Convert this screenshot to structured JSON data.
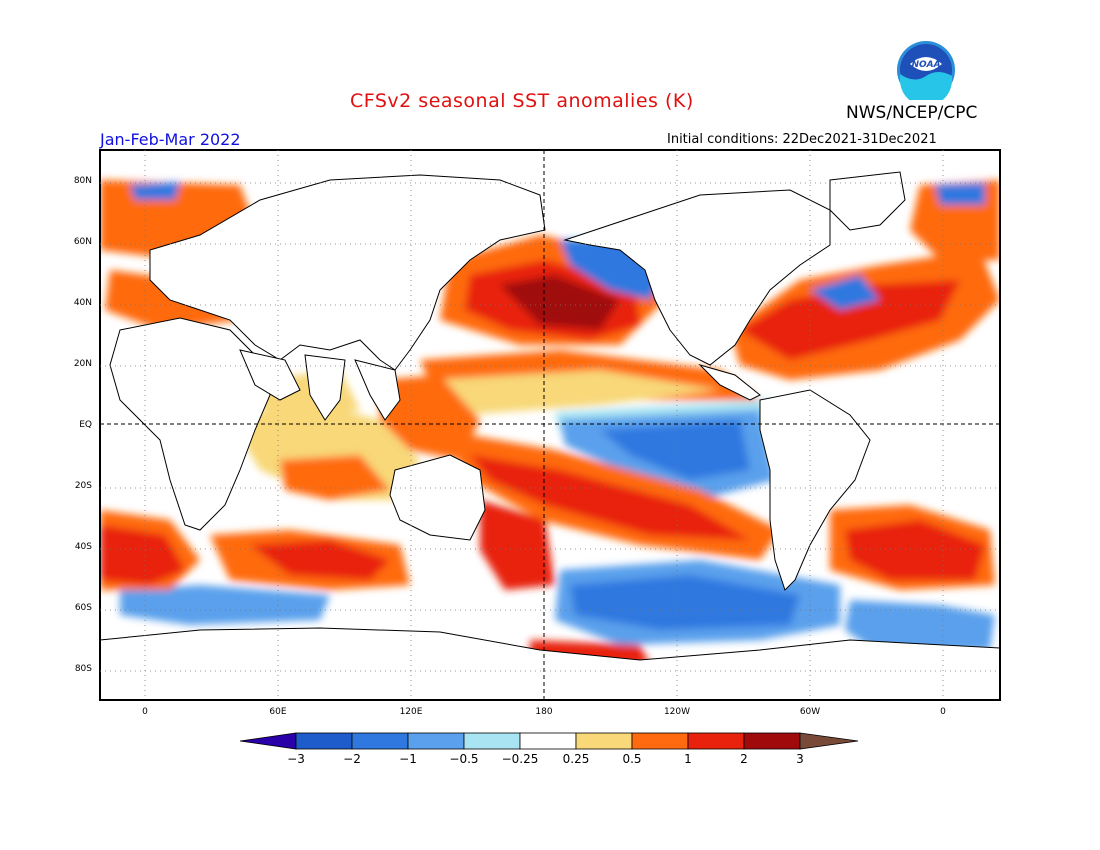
{
  "header": {
    "title": "CFSv2 seasonal SST anomalies (K)",
    "organization": "NWS/NCEP/CPC",
    "period": "Jan-Feb-Mar 2022",
    "initial_conditions": "Initial conditions: 22Dec2021-31Dec2021",
    "logo_text": "NOAA"
  },
  "axes": {
    "lat_labels": [
      "80N",
      "60N",
      "40N",
      "20N",
      "EQ",
      "20S",
      "40S",
      "60S",
      "80S"
    ],
    "lon_labels": [
      "0",
      "60E",
      "120E",
      "180",
      "120W",
      "60W",
      "0"
    ]
  },
  "colorbar": {
    "labels": [
      "-3",
      "-2",
      "-1",
      "-0.5",
      "-0.25",
      "0.25",
      "0.5",
      "1",
      "2",
      "3"
    ],
    "colors": [
      "#2a00a8",
      "#1e5ccc",
      "#2f78e0",
      "#5aa0ec",
      "#a8e4f2",
      "#ffffff",
      "#f8d878",
      "#ff6a10",
      "#e8220c",
      "#a00a0a",
      "#7a4a38"
    ]
  },
  "colors": {
    "title": "#e11010",
    "period": "#1010e0",
    "land": "#ffffff",
    "coast": "#000000"
  }
}
